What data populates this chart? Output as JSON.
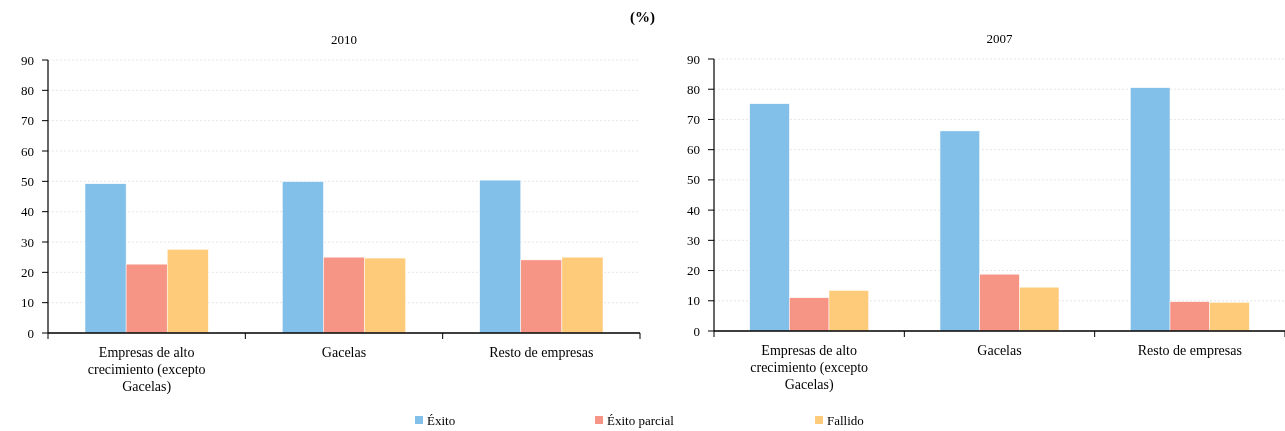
{
  "chart_data": [
    {
      "type": "bar",
      "title": "2010",
      "annotations": [
        "(%)"
      ],
      "categories": [
        "Empresas de alto crecimiento (excepto Gacelas)",
        "Gacelas",
        "Resto de empresas"
      ],
      "series": [
        {
          "name": "Éxito",
          "color": "#82bfe9",
          "values": [
            49.2,
            49.9,
            50.4
          ]
        },
        {
          "name": "Éxito parcial",
          "color": "#f69585",
          "values": [
            22.7,
            25.0,
            24.1
          ]
        },
        {
          "name": "Fallido",
          "color": "#fecb7a",
          "values": [
            27.6,
            24.7,
            25.0
          ]
        }
      ],
      "ylim": [
        0,
        90
      ],
      "yticks": [
        0,
        10,
        20,
        30,
        40,
        50,
        60,
        70,
        80,
        90
      ],
      "grid": "y",
      "legend": "bottom"
    },
    {
      "type": "bar",
      "title": "2007",
      "categories": [
        "Empresas de alto crecimiento (excepto Gacelas)",
        "Gacelas",
        "Resto de empresas"
      ],
      "series": [
        {
          "color": "#82bfe9",
          "values": [
            75.2,
            66.2,
            80.5
          ]
        },
        {
          "color": "#f69585",
          "values": [
            11.0,
            18.8,
            9.7
          ]
        },
        {
          "color": "#fecb7a",
          "values": [
            13.4,
            14.5,
            9.5
          ]
        }
      ],
      "ylim": [
        0,
        90
      ],
      "yticks": [
        0,
        10,
        20,
        30,
        40,
        50,
        60,
        70,
        80,
        90
      ],
      "grid": "y"
    }
  ]
}
